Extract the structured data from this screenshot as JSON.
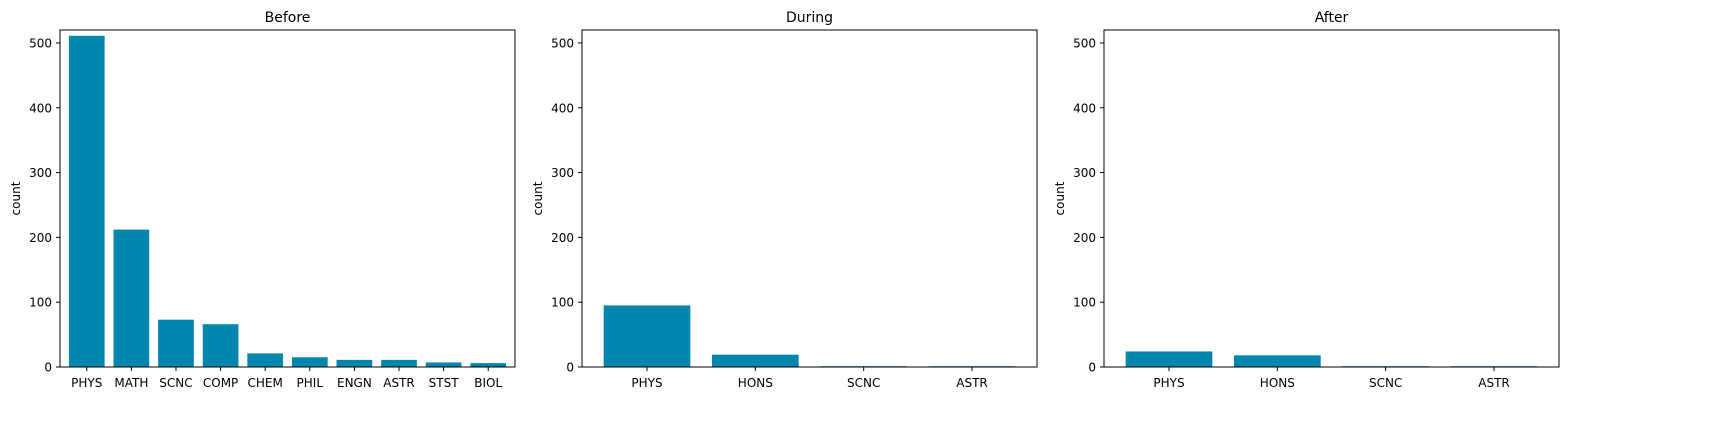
{
  "colors": {
    "bar": "#0086ad",
    "axis": "#000000",
    "background": "#ffffff"
  },
  "chart_data": [
    {
      "type": "bar",
      "title": "Before",
      "xlabel": "",
      "ylabel": "count",
      "ylim": [
        0,
        520
      ],
      "yticks": [
        0,
        100,
        200,
        300,
        400,
        500
      ],
      "grid": false,
      "categories": [
        "PHYS",
        "MATH",
        "SCNC",
        "COMP",
        "CHEM",
        "PHIL",
        "ENGN",
        "ASTR",
        "STST",
        "BIOL"
      ],
      "values": [
        511,
        212,
        73,
        66,
        21,
        15,
        11,
        11,
        7,
        6
      ]
    },
    {
      "type": "bar",
      "title": "During",
      "xlabel": "",
      "ylabel": "count",
      "ylim": [
        0,
        520
      ],
      "yticks": [
        0,
        100,
        200,
        300,
        400,
        500
      ],
      "grid": false,
      "categories": [
        "PHYS",
        "HONS",
        "SCNC",
        "ASTR"
      ],
      "values": [
        95,
        19,
        1,
        1
      ]
    },
    {
      "type": "bar",
      "title": "After",
      "xlabel": "",
      "ylabel": "count",
      "ylim": [
        0,
        520
      ],
      "yticks": [
        0,
        100,
        200,
        300,
        400,
        500
      ],
      "grid": false,
      "categories": [
        "PHYS",
        "HONS",
        "SCNC",
        "ASTR"
      ],
      "values": [
        24,
        18,
        1,
        1
      ]
    }
  ]
}
